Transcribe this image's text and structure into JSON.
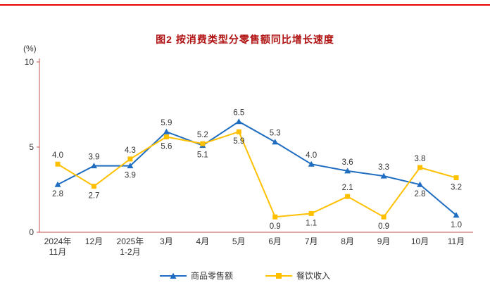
{
  "chart_data": {
    "type": "line",
    "title": "图2 按消费类型分零售额同比增长速度",
    "unit_label": "(%)",
    "categories": [
      [
        "2024年",
        "11月"
      ],
      [
        "12月"
      ],
      [
        "2025年",
        "1-2月"
      ],
      [
        "3月"
      ],
      [
        "4月"
      ],
      [
        "5月"
      ],
      [
        "6月"
      ],
      [
        "7月"
      ],
      [
        "8月"
      ],
      [
        "9月"
      ],
      [
        "10月"
      ],
      [
        "11月"
      ]
    ],
    "ylim": [
      0,
      10
    ],
    "yticks": [
      0,
      5,
      10
    ],
    "legend_position": "bottom",
    "grid": false,
    "series": [
      {
        "name": "商品零售额",
        "marker": "triangle",
        "color": "#1f6dc0",
        "values": [
          2.8,
          3.9,
          3.9,
          5.9,
          5.1,
          6.5,
          5.3,
          4.0,
          3.6,
          3.3,
          2.8,
          1.0
        ],
        "label_pos": [
          "below",
          "above",
          "below",
          "above",
          "below",
          "above",
          "above",
          "above",
          "above",
          "above",
          "below",
          "below"
        ]
      },
      {
        "name": "餐饮收入",
        "marker": "square",
        "color": "#ffc000",
        "values": [
          4.0,
          2.7,
          4.3,
          5.6,
          5.2,
          5.9,
          0.9,
          1.1,
          2.1,
          0.9,
          3.8,
          3.2
        ],
        "label_pos": [
          "above",
          "below",
          "above",
          "below",
          "above",
          "below",
          "below",
          "below",
          "above",
          "below",
          "above",
          "below"
        ]
      }
    ],
    "colors": {
      "title": "#b01111",
      "top_rule": "#e60000",
      "axis": "#c0504d",
      "tick_text": "#333333",
      "data_label_text": "#333333"
    }
  }
}
